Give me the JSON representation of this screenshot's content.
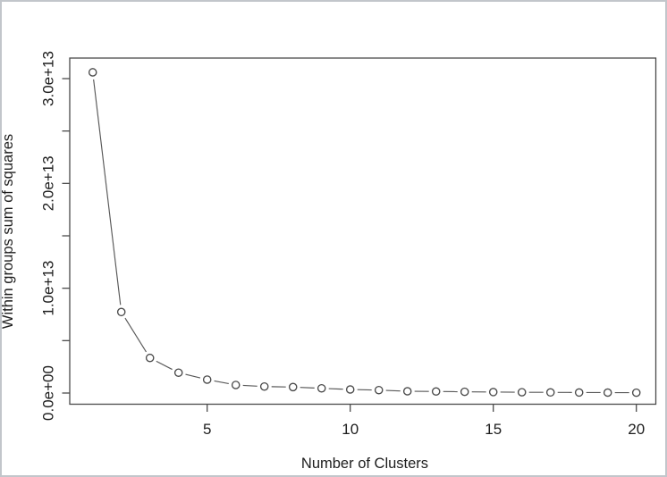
{
  "window": {
    "background": "#ffffff",
    "frame_border_color": "#c2c6cb"
  },
  "colors": {
    "axis": "#4a4a4a",
    "text": "#1d1d1d",
    "series_line": "#585858",
    "marker_stroke": "#4a4a4a",
    "marker_fill": "#ffffff"
  },
  "chart_data": {
    "type": "line",
    "style": "open-circle markers with gapped connecting segments (R base plot, type='b', pch=1)",
    "title": "",
    "xlabel": "Number of Clusters",
    "ylabel": "Within groups sum of squares",
    "grid": false,
    "legend": null,
    "x": [
      1,
      2,
      3,
      4,
      5,
      6,
      7,
      8,
      9,
      10,
      11,
      12,
      13,
      14,
      15,
      16,
      17,
      18,
      19,
      20
    ],
    "y": [
      30600000000000.0,
      7730000000000.0,
      3350000000000.0,
      1940000000000.0,
      1280000000000.0,
      770000000000.0,
      620000000000.0,
      570000000000.0,
      450000000000.0,
      340000000000.0,
      280000000000.0,
      170000000000.0,
      150000000000.0,
      120000000000.0,
      94000000000.0,
      77000000000.0,
      62000000000.0,
      51000000000.0,
      43000000000.0,
      34000000000.0
    ],
    "x_axis": {
      "range": [
        1,
        20
      ],
      "ticks": [
        5,
        10,
        15,
        20
      ],
      "tick_labels": [
        "5",
        "10",
        "15",
        "20"
      ]
    },
    "y_axis": {
      "range": [
        0,
        30600000000000.0
      ],
      "major_ticks": [
        0,
        10000000000000.0,
        20000000000000.0,
        30000000000000.0
      ],
      "tick_labels": [
        "0.0e+00",
        "1.0e+13",
        "2.0e+13",
        "3.0e+13"
      ],
      "minor_ticks": [
        5000000000000.0,
        15000000000000.0,
        25000000000000.0
      ],
      "tick_label_rotation_deg": 90
    }
  }
}
